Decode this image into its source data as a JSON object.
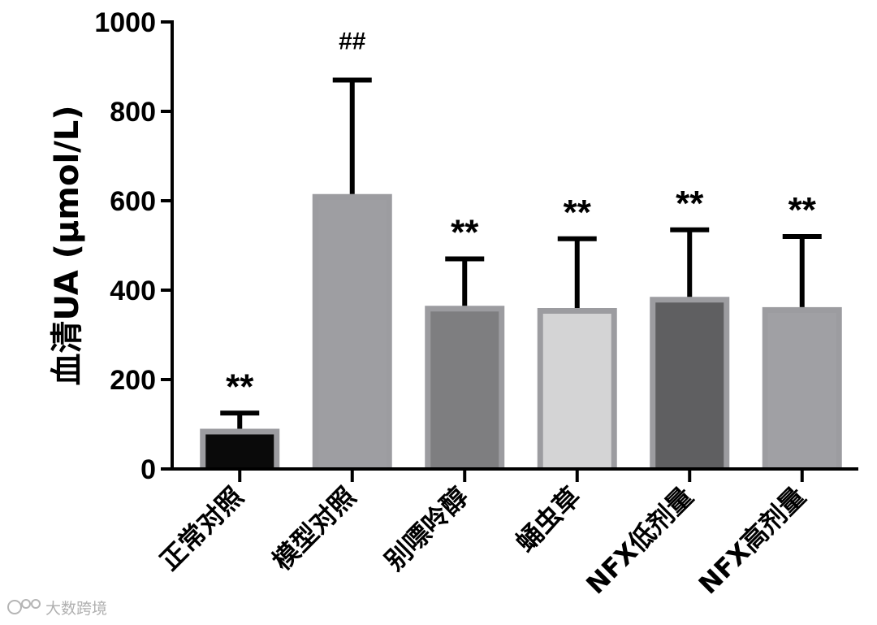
{
  "chart_data": {
    "type": "bar",
    "ylabel": "血清UA (μmol/L)",
    "ylim": [
      0,
      1000
    ],
    "yticks": [
      0,
      200,
      400,
      600,
      800,
      1000
    ],
    "categories": [
      "正常对照",
      "模型对照",
      "别嘌呤醇",
      "蛹虫草",
      "NFX低剂量",
      "NFX高剂量"
    ],
    "values": [
      90,
      615,
      365,
      360,
      385,
      362
    ],
    "errors": [
      35,
      255,
      105,
      155,
      150,
      158
    ],
    "significance": [
      "**",
      "##",
      "**",
      "**",
      "**",
      "**"
    ],
    "bar_colors": [
      "#0a0a0a",
      "#9e9ea2",
      "#7e7e80",
      "#d4d4d5",
      "#5f5f61",
      "#a0a0a4"
    ],
    "grid": false,
    "legend": "none"
  },
  "watermark": {
    "text": "大数跨境",
    "icon": "logo-icon"
  }
}
